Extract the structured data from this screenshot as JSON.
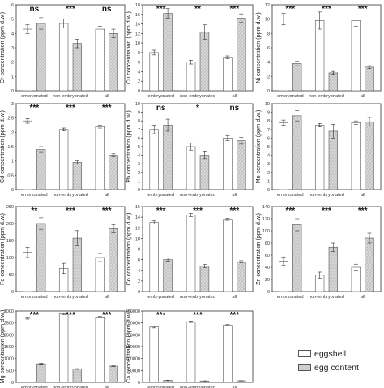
{
  "colors": {
    "eggshell": "#ffffff",
    "egg_content": "#cfcfcf",
    "axis": "#333333"
  },
  "legend": {
    "eggshell": "eggshell",
    "egg_content": "egg content"
  },
  "chart_data": [
    {
      "type": "bar",
      "ylabel": "Cr concentration (ppm d.w.)",
      "ylim": [
        0,
        6
      ],
      "yticks": [
        0,
        1,
        2,
        3,
        4,
        5,
        6
      ],
      "categories": [
        "embryonated",
        "non-embryonated",
        "all"
      ],
      "series": [
        {
          "name": "eggshell",
          "values": [
            4.3,
            4.7,
            4.3
          ],
          "errors": [
            0.3,
            0.3,
            0.2
          ]
        },
        {
          "name": "egg content",
          "values": [
            4.7,
            3.3,
            4.0
          ],
          "errors": [
            0.4,
            0.3,
            0.3
          ]
        }
      ],
      "significance": [
        "ns",
        "***",
        "ns"
      ]
    },
    {
      "type": "bar",
      "ylabel": "Cu concentration (ppm d.w.)",
      "ylim": [
        0,
        18
      ],
      "yticks": [
        0,
        2,
        4,
        6,
        8,
        10,
        12,
        14,
        16,
        18
      ],
      "categories": [
        "embryonated",
        "non-embryonated",
        "all"
      ],
      "series": [
        {
          "name": "eggshell",
          "values": [
            8.0,
            6.0,
            7.0
          ],
          "errors": [
            0.5,
            0.4,
            0.3
          ]
        },
        {
          "name": "egg content",
          "values": [
            16.2,
            12.3,
            15.2
          ],
          "errors": [
            1.0,
            1.5,
            0.9
          ]
        }
      ],
      "significance": [
        "***",
        "**",
        "***"
      ]
    },
    {
      "type": "bar",
      "ylabel": "Ni concentration (ppm d.w.)",
      "ylim": [
        0,
        12
      ],
      "yticks": [
        0,
        2,
        4,
        6,
        8,
        10,
        12
      ],
      "categories": [
        "embryonated",
        "non-embryonated",
        "all"
      ],
      "series": [
        {
          "name": "eggshell",
          "values": [
            10.0,
            9.8,
            9.8
          ],
          "errors": [
            0.8,
            1.2,
            0.8
          ]
        },
        {
          "name": "egg content",
          "values": [
            3.8,
            2.5,
            3.3
          ],
          "errors": [
            0.3,
            0.2,
            0.2
          ]
        }
      ],
      "significance": [
        "***",
        "***",
        "***"
      ]
    },
    {
      "type": "bar",
      "ylabel": "Cd concentration (ppm d.w.)",
      "ylim": [
        0,
        3
      ],
      "yticks": [
        0,
        0.5,
        1,
        1.5,
        2,
        2.5,
        3
      ],
      "categories": [
        "embryonated",
        "non-embryonated",
        "all"
      ],
      "series": [
        {
          "name": "eggshell",
          "values": [
            2.4,
            2.1,
            2.2
          ],
          "errors": [
            0.08,
            0.05,
            0.05
          ]
        },
        {
          "name": "egg content",
          "values": [
            1.4,
            0.95,
            1.2
          ],
          "errors": [
            0.1,
            0.05,
            0.05
          ]
        }
      ],
      "significance": [
        "***",
        "***",
        "***"
      ]
    },
    {
      "type": "bar",
      "ylabel": "Pb concentration (ppm d.w.)",
      "ylim": [
        0,
        10
      ],
      "yticks": [
        0,
        1,
        2,
        3,
        4,
        5,
        6,
        7,
        8,
        9,
        10
      ],
      "categories": [
        "embryonated",
        "non-embryonated",
        "all"
      ],
      "series": [
        {
          "name": "eggshell",
          "values": [
            7.0,
            5.0,
            6.0
          ],
          "errors": [
            0.5,
            0.4,
            0.3
          ]
        },
        {
          "name": "egg content",
          "values": [
            7.5,
            4.0,
            5.7
          ],
          "errors": [
            0.7,
            0.4,
            0.4
          ]
        }
      ],
      "significance": [
        "ns",
        "*",
        "ns"
      ]
    },
    {
      "type": "bar",
      "ylabel": "Mn concentration (ppm d.w.)",
      "ylim": [
        0,
        10
      ],
      "yticks": [
        0,
        1,
        2,
        3,
        4,
        5,
        6,
        7,
        8,
        9,
        10
      ],
      "categories": [
        "embryonated",
        "non-embryonated",
        "all"
      ],
      "series": [
        {
          "name": "eggshell",
          "values": [
            7.8,
            7.5,
            7.8
          ],
          "errors": [
            0.3,
            0.2,
            0.2
          ]
        },
        {
          "name": "egg content",
          "values": [
            8.6,
            6.8,
            7.9
          ],
          "errors": [
            0.6,
            0.8,
            0.5
          ]
        }
      ],
      "significance": [
        "",
        "",
        ""
      ]
    },
    {
      "type": "bar",
      "ylabel": "Fe concentration (ppm d.w.)",
      "ylim": [
        0,
        250
      ],
      "yticks": [
        0,
        50,
        100,
        150,
        200,
        250
      ],
      "categories": [
        "embryonated",
        "non-embryonated",
        "all"
      ],
      "series": [
        {
          "name": "eggshell",
          "values": [
            115,
            68,
            100
          ],
          "errors": [
            15,
            15,
            12
          ]
        },
        {
          "name": "egg content",
          "values": [
            200,
            157,
            185
          ],
          "errors": [
            17,
            22,
            12
          ]
        }
      ],
      "significance": [
        "**",
        "***",
        "***"
      ]
    },
    {
      "type": "bar",
      "ylabel": "Co concentration (ppm d.w.)",
      "ylim": [
        0,
        16
      ],
      "yticks": [
        0,
        2,
        4,
        6,
        8,
        10,
        12,
        14,
        16
      ],
      "categories": [
        "embryonated",
        "non-embryonated",
        "all"
      ],
      "series": [
        {
          "name": "eggshell",
          "values": [
            13.0,
            14.4,
            13.6
          ],
          "errors": [
            0.3,
            0.3,
            0.2
          ]
        },
        {
          "name": "egg content",
          "values": [
            6.0,
            4.8,
            5.6
          ],
          "errors": [
            0.3,
            0.3,
            0.2
          ]
        }
      ],
      "significance": [
        "***",
        "***",
        "***"
      ]
    },
    {
      "type": "bar",
      "ylabel": "Zn concentration (ppm d.w.)",
      "ylim": [
        0,
        140
      ],
      "yticks": [
        0,
        20,
        40,
        60,
        80,
        100,
        120,
        140
      ],
      "categories": [
        "embryonated",
        "non-embryonated",
        "all"
      ],
      "series": [
        {
          "name": "eggshell",
          "values": [
            50,
            27,
            40
          ],
          "errors": [
            7,
            5,
            5
          ]
        },
        {
          "name": "egg content",
          "values": [
            110,
            73,
            88
          ],
          "errors": [
            10,
            7,
            8
          ]
        }
      ],
      "significance": [
        "***",
        "***",
        "***"
      ]
    },
    {
      "type": "bar",
      "ylabel": "Mg concentration (ppm d.w.)",
      "ylim": [
        0,
        3000
      ],
      "yticks": [
        0,
        500,
        1000,
        1500,
        2000,
        2500,
        3000
      ],
      "categories": [
        "embryonated",
        "non-embryonated",
        "all"
      ],
      "series": [
        {
          "name": "eggshell",
          "values": [
            2700,
            2880,
            2750
          ],
          "errors": [
            40,
            30,
            30
          ]
        },
        {
          "name": "egg content",
          "values": [
            780,
            560,
            680
          ],
          "errors": [
            20,
            15,
            15
          ]
        }
      ],
      "significance": [
        "***",
        "***",
        "***"
      ]
    },
    {
      "type": "bar",
      "ylabel": "Ca concentration (ppm d.w.)",
      "ylim": [
        0,
        300000
      ],
      "yticks": [
        0,
        50000,
        100000,
        150000,
        200000,
        250000,
        300000
      ],
      "categories": [
        "embryonated",
        "non-embryonated",
        "all"
      ],
      "series": [
        {
          "name": "eggshell",
          "values": [
            233000,
            255000,
            240000
          ],
          "errors": [
            4000,
            3000,
            3000
          ]
        },
        {
          "name": "egg content",
          "values": [
            8000,
            6000,
            7000
          ],
          "errors": [
            600,
            500,
            400
          ]
        }
      ],
      "significance": [
        "***",
        "***",
        "***"
      ]
    }
  ]
}
